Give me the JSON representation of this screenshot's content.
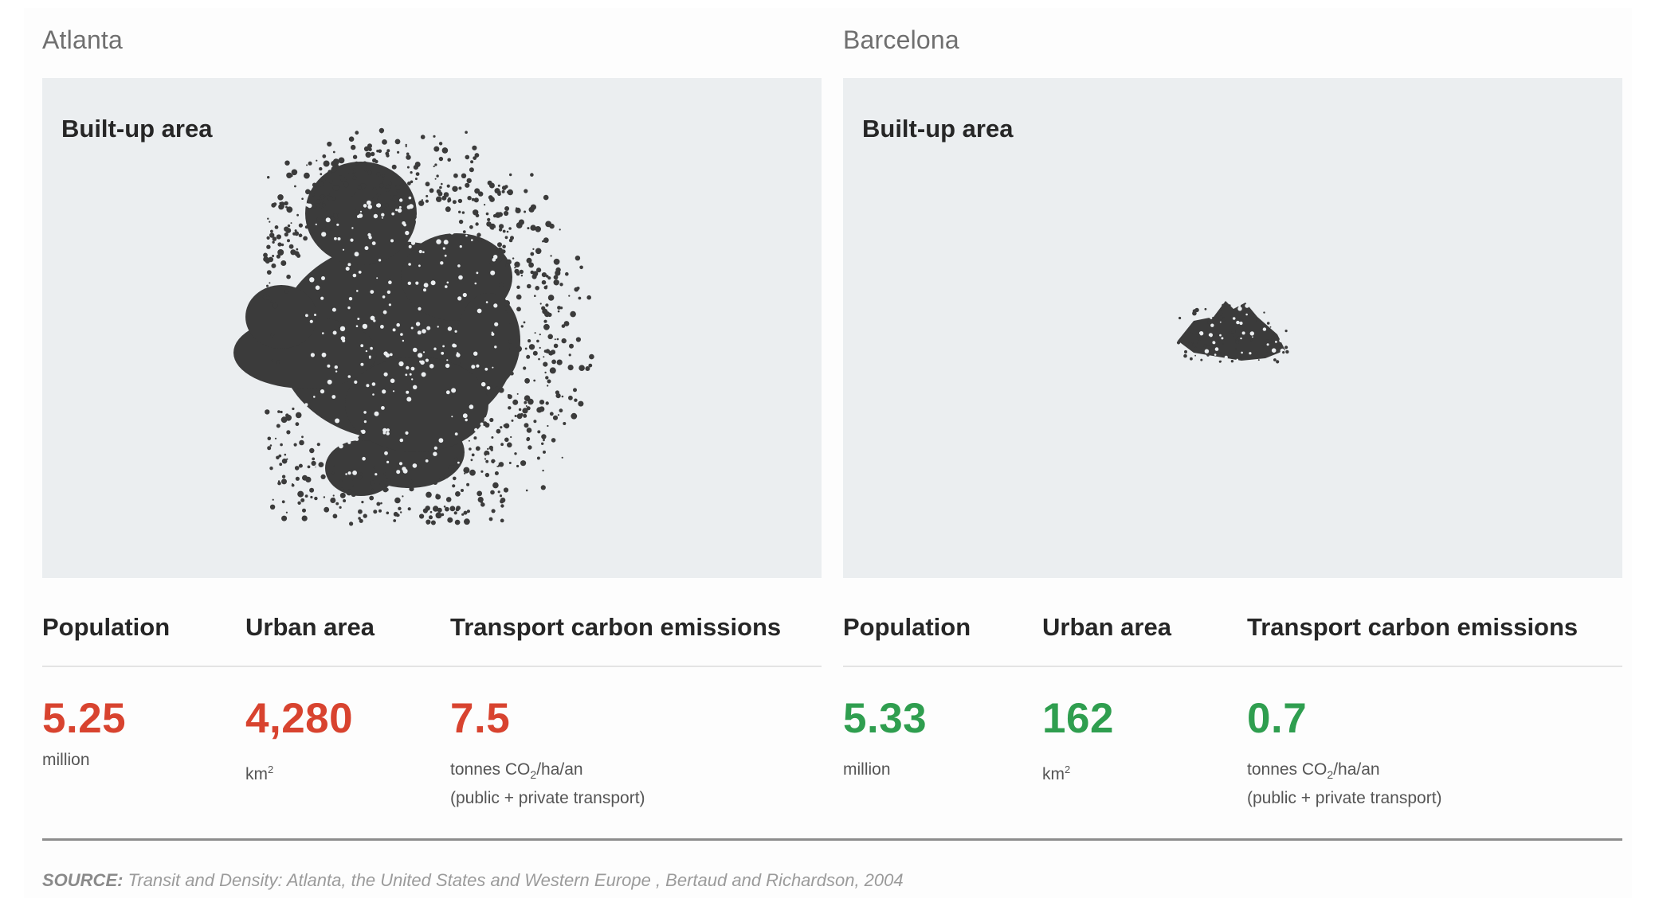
{
  "colors": {
    "atlanta_accent": "#d8432f",
    "barcelona_accent": "#2f9e4f",
    "map_background": "#ebeef0",
    "urban_fill": "#3b3b3b"
  },
  "cities": [
    {
      "name": "Atlanta",
      "map_title": "Built-up area",
      "population_label": "Population",
      "population_value": "5.25",
      "population_unit": "million",
      "area_label": "Urban area",
      "area_value": "4,280",
      "area_unit": "km",
      "area_unit_sup": "2",
      "emissions_label": "Transport carbon emissions",
      "emissions_value": "7.5",
      "emissions_unit_pre": "tonnes CO",
      "emissions_unit_sub": "2",
      "emissions_unit_post": "/ha/an",
      "emissions_note": "(public + private transport)"
    },
    {
      "name": "Barcelona",
      "map_title": "Built-up area",
      "population_label": "Population",
      "population_value": "5.33",
      "population_unit": "million",
      "area_label": "Urban area",
      "area_value": "162",
      "area_unit": "km",
      "area_unit_sup": "2",
      "emissions_label": "Transport carbon emissions",
      "emissions_value": "0.7",
      "emissions_unit_pre": "tonnes CO",
      "emissions_unit_sub": "2",
      "emissions_unit_post": "/ha/an",
      "emissions_note": "(public + private transport)"
    }
  ],
  "source": {
    "prefix": "SOURCE:",
    "text": " Transit and Density: Atlanta, the United States and Western Europe , Bertaud and Richardson, 2004"
  }
}
